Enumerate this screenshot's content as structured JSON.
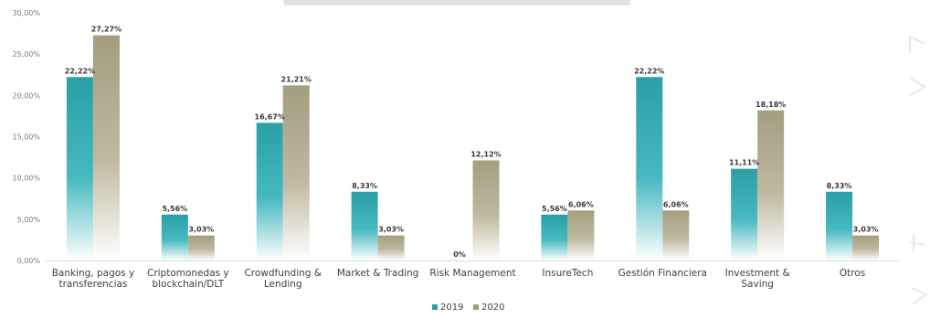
{
  "chart_data": {
    "type": "bar",
    "title": "",
    "xlabel": "",
    "ylabel": "",
    "categories": [
      [
        "Banking, pagos y",
        "transferencias"
      ],
      [
        "Criptomonedas y",
        "blockchain/DLT"
      ],
      [
        "Crowdfunding &",
        "Lending"
      ],
      [
        "Market & Trading"
      ],
      [
        "Risk Management"
      ],
      [
        "InsureTech"
      ],
      [
        "Gestión Financiera"
      ],
      [
        "Investment &",
        "Saving"
      ],
      [
        "Otros"
      ]
    ],
    "series": [
      {
        "name": "2019",
        "color": "#2a9fa6",
        "values": [
          22.22,
          5.56,
          16.67,
          8.33,
          0,
          5.56,
          22.22,
          11.11,
          8.33
        ],
        "labels": [
          "22,22%",
          "5,56%",
          "16,67%",
          "8,33%",
          "0%",
          "5,56%",
          "22,22%",
          "11,11%",
          "8,33%"
        ]
      },
      {
        "name": "2020",
        "color": "#a39e7f",
        "values": [
          27.27,
          3.03,
          21.21,
          3.03,
          12.12,
          6.06,
          6.06,
          18.18,
          3.03
        ],
        "labels": [
          "27,27%",
          "3,03%",
          "21,21%",
          "3,03%",
          "12,12%",
          "6,06%",
          "6,06%",
          "18,18%",
          "3,03%"
        ]
      }
    ],
    "ylim": [
      0,
      30
    ],
    "yticks": [
      0,
      5,
      10,
      15,
      20,
      25,
      30
    ],
    "ytick_labels": [
      "0,00%",
      "5,00%",
      "10,00%",
      "15,00%",
      "20,00%",
      "25,00%",
      "30,00%"
    ],
    "grid": false,
    "legend": "bottom-center"
  }
}
